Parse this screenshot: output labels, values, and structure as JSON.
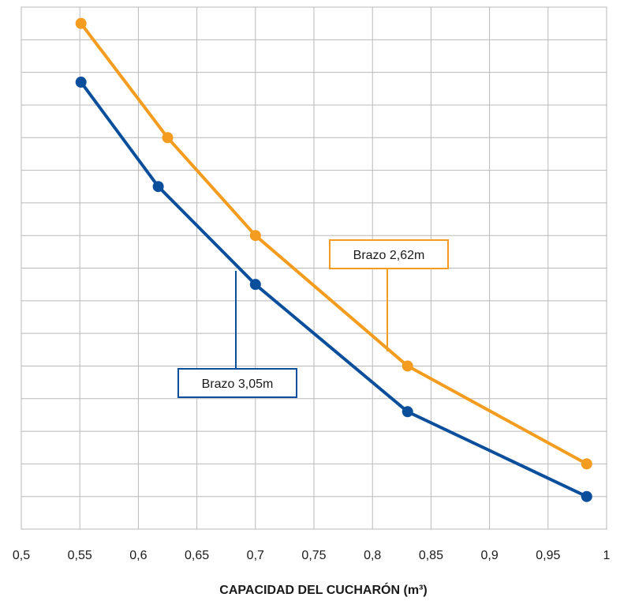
{
  "chart_data": {
    "type": "line",
    "title": "",
    "xlabel": "CAPACIDAD DEL CUCHARÓN (m³)",
    "ylabel": "",
    "xlim": [
      0.5,
      1.0
    ],
    "x_ticks": [
      "0,5",
      "0,55",
      "0,6",
      "0,65",
      "0,7",
      "0,75",
      "0,8",
      "0,85",
      "0,9",
      "0,95",
      "1"
    ],
    "x_tick_values": [
      0.5,
      0.55,
      0.6,
      0.65,
      0.7,
      0.75,
      0.8,
      0.85,
      0.9,
      0.95,
      1.0
    ],
    "ylim": [
      0,
      16
    ],
    "y_gridlines": 16,
    "grid": true,
    "series": [
      {
        "name": "Brazo 2,62m",
        "color": "#f39c1f",
        "points": [
          {
            "x": 0.551,
            "y": 15.5
          },
          {
            "x": 0.625,
            "y": 12.0
          },
          {
            "x": 0.7,
            "y": 9.0
          },
          {
            "x": 0.83,
            "y": 5.0
          },
          {
            "x": 0.983,
            "y": 2.0
          }
        ]
      },
      {
        "name": "Brazo 3,05m",
        "color": "#0b4f9c",
        "points": [
          {
            "x": 0.551,
            "y": 13.7
          },
          {
            "x": 0.617,
            "y": 10.5
          },
          {
            "x": 0.7,
            "y": 7.5
          },
          {
            "x": 0.83,
            "y": 3.6
          },
          {
            "x": 0.983,
            "y": 1.0
          }
        ]
      }
    ]
  }
}
